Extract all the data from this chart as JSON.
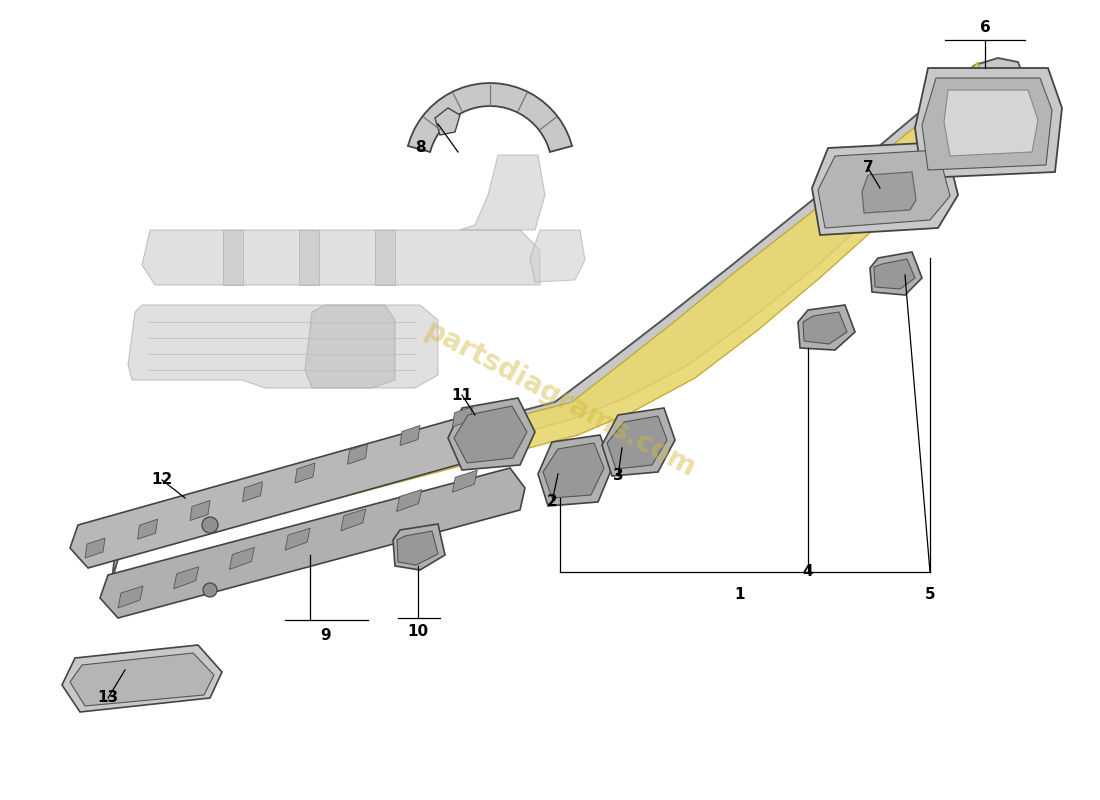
{
  "background_color": "#ffffff",
  "watermark_text": "partsdiagrams.com",
  "watermark_color": "#d4b840",
  "watermark_alpha": 0.45,
  "line_color": "#000000",
  "ghost_color": "#d0d0d0",
  "ghost_edge": "#aaaaaa",
  "rail_color": "#c8c8c8",
  "rail_edge": "#555555",
  "yellow_color": "#e8d870",
  "yellow_edge": "#c0a830",
  "part_color": "#b0b0b0",
  "part_edge": "#444444",
  "part_inner": "#989898",
  "part_inner_edge": "#555555",
  "label_fontsize": 11,
  "label_color": "#000000"
}
